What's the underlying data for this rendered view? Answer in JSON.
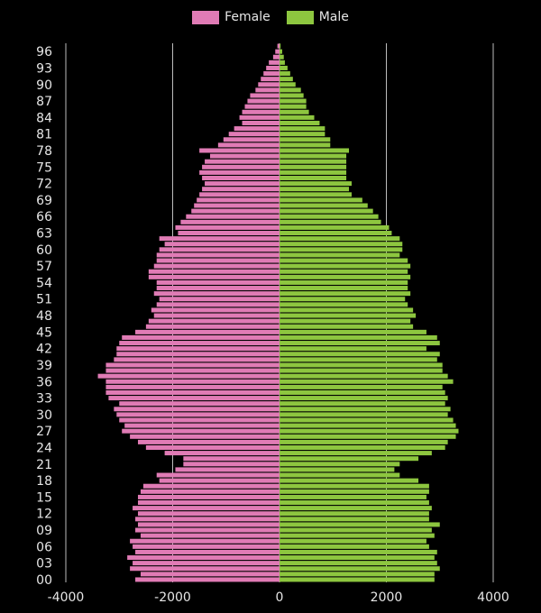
{
  "chart_data": {
    "type": "bar",
    "orientation": "horizontal",
    "title": "",
    "xlabel": "",
    "ylabel": "",
    "xlim": [
      -4000,
      4000
    ],
    "x_ticks": [
      -4000,
      -2000,
      0,
      2000,
      4000
    ],
    "x_tick_labels": [
      "-4000",
      "-2000",
      "0",
      "2000",
      "4000"
    ],
    "y_tick_labels": [
      "00",
      "03",
      "06",
      "09",
      "12",
      "15",
      "18",
      "21",
      "24",
      "27",
      "30",
      "33",
      "36",
      "39",
      "42",
      "45",
      "48",
      "51",
      "54",
      "57",
      "60",
      "63",
      "66",
      "69",
      "72",
      "75",
      "78",
      "81",
      "84",
      "87",
      "90",
      "93",
      "96"
    ],
    "grid": true,
    "legend_position": "top-center",
    "categories": [
      "0",
      "1",
      "2",
      "3",
      "4",
      "5",
      "6",
      "7",
      "8",
      "9",
      "10",
      "11",
      "12",
      "13",
      "14",
      "15",
      "16",
      "17",
      "18",
      "19",
      "20",
      "21",
      "22",
      "23",
      "24",
      "25",
      "26",
      "27",
      "28",
      "29",
      "30",
      "31",
      "32",
      "33",
      "34",
      "35",
      "36",
      "37",
      "38",
      "39",
      "40",
      "41",
      "42",
      "43",
      "44",
      "45",
      "46",
      "47",
      "48",
      "49",
      "50",
      "51",
      "52",
      "53",
      "54",
      "55",
      "56",
      "57",
      "58",
      "59",
      "60",
      "61",
      "62",
      "63",
      "64",
      "65",
      "66",
      "67",
      "68",
      "69",
      "70",
      "71",
      "72",
      "73",
      "74",
      "75",
      "76",
      "77",
      "78",
      "79",
      "80",
      "81",
      "82",
      "83",
      "84",
      "85",
      "86",
      "87",
      "88",
      "89",
      "90",
      "91",
      "92",
      "93",
      "94",
      "95",
      "96",
      "97"
    ],
    "series": [
      {
        "name": "Female",
        "color": "#e07bb5",
        "values": [
          2700,
          2600,
          2800,
          2750,
          2850,
          2700,
          2750,
          2800,
          2600,
          2700,
          2650,
          2700,
          2650,
          2750,
          2650,
          2650,
          2600,
          2550,
          2250,
          2300,
          1950,
          1800,
          1800,
          2150,
          2500,
          2650,
          2800,
          2950,
          2900,
          3000,
          3050,
          3100,
          3000,
          3200,
          3250,
          3250,
          3250,
          3400,
          3250,
          3250,
          3100,
          3050,
          3050,
          3000,
          2950,
          2700,
          2500,
          2450,
          2350,
          2400,
          2300,
          2250,
          2350,
          2300,
          2300,
          2450,
          2450,
          2350,
          2300,
          2300,
          2250,
          2150,
          2250,
          1900,
          1950,
          1850,
          1750,
          1650,
          1600,
          1550,
          1500,
          1450,
          1400,
          1450,
          1500,
          1450,
          1400,
          1300,
          1500,
          1150,
          1050,
          950,
          850,
          700,
          750,
          700,
          650,
          600,
          550,
          450,
          400,
          350,
          300,
          250,
          200,
          120,
          80,
          40
        ]
      },
      {
        "name": "Male",
        "color": "#8dc63f",
        "values": [
          2900,
          2900,
          3000,
          2950,
          2900,
          2950,
          2800,
          2750,
          2900,
          2850,
          3000,
          2800,
          2800,
          2850,
          2800,
          2750,
          2800,
          2800,
          2600,
          2250,
          2150,
          2250,
          2600,
          2850,
          3100,
          3150,
          3300,
          3350,
          3300,
          3250,
          3150,
          3200,
          3100,
          3150,
          3100,
          3050,
          3250,
          3150,
          3050,
          3050,
          2950,
          3000,
          2750,
          3000,
          2950,
          2750,
          2500,
          2450,
          2550,
          2500,
          2400,
          2350,
          2450,
          2400,
          2400,
          2450,
          2400,
          2450,
          2400,
          2250,
          2300,
          2300,
          2250,
          2100,
          2050,
          1900,
          1850,
          1750,
          1650,
          1550,
          1350,
          1300,
          1350,
          1250,
          1250,
          1250,
          1250,
          1250,
          1300,
          950,
          950,
          850,
          850,
          750,
          650,
          550,
          500,
          500,
          450,
          400,
          300,
          250,
          200,
          150,
          100,
          80,
          50,
          20
        ]
      }
    ]
  }
}
